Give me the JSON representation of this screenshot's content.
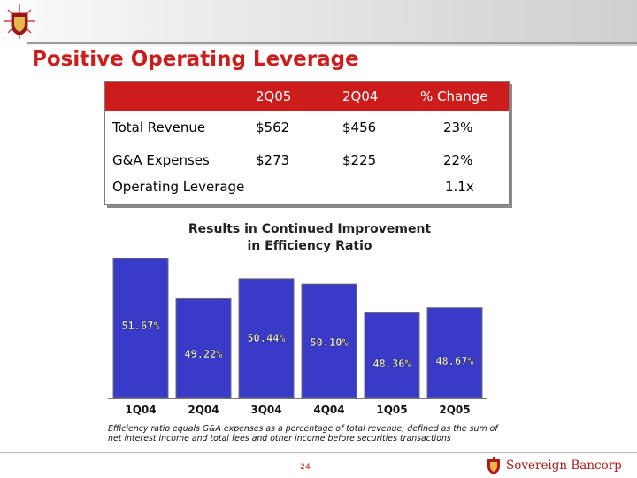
{
  "title": "Positive Operating Leverage",
  "table": {
    "headers": [
      "",
      "2Q05",
      "2Q04",
      "% Change"
    ],
    "rows": [
      {
        "label": "Total Revenue",
        "v1": "$562",
        "v2": "$456",
        "change": "23%"
      },
      {
        "label": "G&A Expenses",
        "v1": "$273",
        "v2": "$225",
        "change": "22%"
      },
      {
        "label": "Operating Leverage",
        "v1": "",
        "v2": "",
        "change": "1.1x"
      }
    ]
  },
  "subtitle": {
    "line1": "Results in Continued Improvement",
    "line2": "in Efficiency Ratio"
  },
  "chart_data": {
    "type": "bar",
    "categories": [
      "1Q04",
      "2Q04",
      "3Q04",
      "4Q04",
      "1Q05",
      "2Q05"
    ],
    "values": [
      51.67,
      49.22,
      50.44,
      50.1,
      48.36,
      48.67
    ],
    "labels": [
      "51.67%",
      "49.22%",
      "50.44%",
      "50.10%",
      "48.36%",
      "48.67%"
    ],
    "bar_color": "#3a3ac8",
    "grid": false
  },
  "footnote": {
    "line1": "Efficiency ratio equals G&A expenses as a percentage of total revenue, defined as the sum of",
    "line2": "net interest income and total fees and other income before securities transactions"
  },
  "page_number": "24",
  "brand": {
    "name": "Sovereign Bancorp"
  },
  "colors": {
    "accent": "#cc1c1c"
  },
  "icons": {
    "header_logo": "sovereign-crest-icon",
    "footer_logo": "sovereign-crest-icon"
  }
}
